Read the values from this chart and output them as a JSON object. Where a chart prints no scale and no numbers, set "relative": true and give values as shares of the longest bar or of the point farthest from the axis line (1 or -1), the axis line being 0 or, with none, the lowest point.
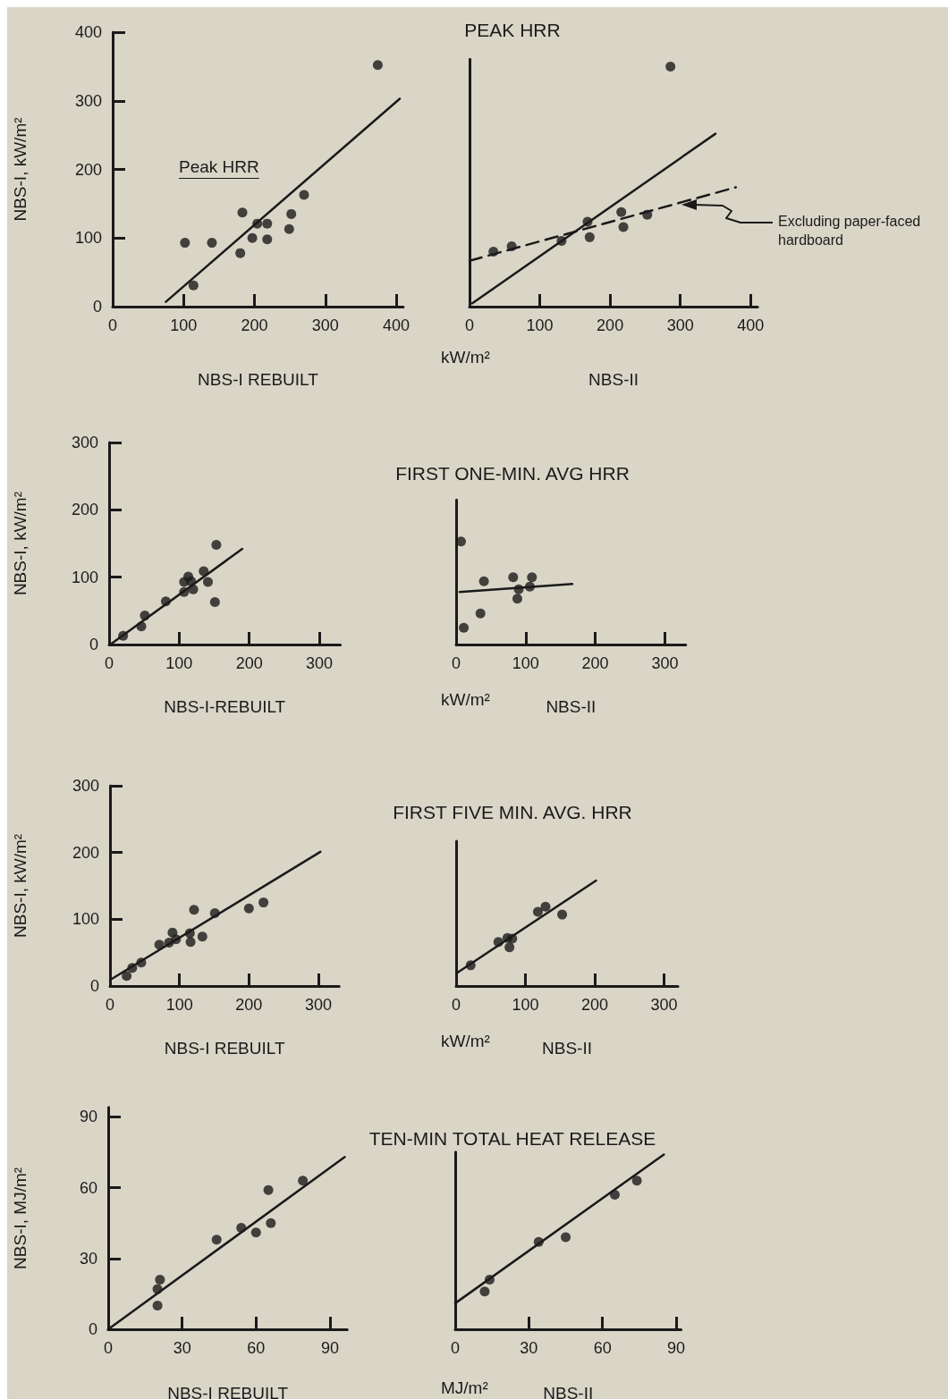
{
  "chart_data": [
    {
      "type": "scatter",
      "xlabel": "NBS-I REBUILT",
      "ylabel": "NBS-I, kW/m²",
      "annotations": [
        "Peak HRR"
      ],
      "xlim": [
        0,
        410
      ],
      "ylim": [
        0,
        400
      ],
      "xticks": [
        0,
        100,
        200,
        300,
        400
      ],
      "yticks": [
        0,
        100,
        200,
        300,
        400
      ],
      "marker": "circle",
      "series": [
        {
          "type": "scatter",
          "color": "#1a1a1a",
          "x": [
            102,
            114,
            140,
            180,
            183,
            197,
            204,
            218,
            218,
            249,
            252,
            270,
            374
          ],
          "values": [
            93,
            31,
            93,
            78,
            137,
            100,
            121,
            121,
            98,
            113,
            135,
            163,
            352
          ]
        },
        {
          "type": "line",
          "color": "#1a1a1a",
          "marker": "none",
          "line_style": "solid",
          "x": [
            75,
            405
          ],
          "values": [
            7,
            303
          ]
        }
      ]
    },
    {
      "type": "scatter",
      "title": "PEAK HRR",
      "xlabel": "NBS-II",
      "annotations": [
        "kW/m²",
        "Excluding paper-faced hardboard"
      ],
      "xlim": [
        0,
        410
      ],
      "xticks": [
        0,
        100,
        200,
        300,
        400
      ],
      "relative": true,
      "tick_labels": "x",
      "marker": "circle",
      "series": [
        {
          "type": "scatter",
          "color": "#1a1a1a",
          "x": [
            34,
            60,
            131,
            168,
            171,
            216,
            219,
            253,
            286
          ],
          "values": [
            0.229,
            0.251,
            0.274,
            0.354,
            0.289,
            0.394,
            0.331,
            0.383,
            1
          ]
        },
        {
          "type": "line",
          "color": "#1a1a1a",
          "marker": "none",
          "line_style": "solid",
          "x": [
            4,
            350
          ],
          "values": [
            0.014,
            0.72
          ]
        },
        {
          "type": "line",
          "color": "#1a1a1a",
          "marker": "none",
          "line_style": "dashed",
          "x": [
            0,
            379
          ],
          "values": [
            0.191,
            0.497
          ]
        }
      ]
    },
    {
      "type": "scatter",
      "xlabel": "NBS-I-REBUILT",
      "ylabel": "NBS-I, kW/m²",
      "xlim": [
        0,
        330
      ],
      "ylim": [
        0,
        300
      ],
      "xticks": [
        0,
        100,
        200,
        300
      ],
      "yticks": [
        0,
        100,
        200,
        300
      ],
      "marker": "circle",
      "series": [
        {
          "type": "scatter",
          "color": "#1a1a1a",
          "x": [
            20,
            46,
            51,
            81,
            107,
            107,
            113,
            117,
            120,
            135,
            141,
            151,
            153
          ],
          "values": [
            13,
            27,
            43,
            64,
            93,
            78,
            101,
            94,
            82,
            109,
            93,
            63,
            148
          ]
        },
        {
          "type": "line",
          "color": "#1a1a1a",
          "marker": "none",
          "line_style": "solid",
          "x": [
            3,
            190
          ],
          "values": [
            1,
            142
          ]
        }
      ]
    },
    {
      "type": "scatter",
      "title": "FIRST ONE-MIN. AVG HRR",
      "xlabel": "NBS-II",
      "annotations": [
        "kW/m²"
      ],
      "xlim": [
        0,
        330
      ],
      "xticks": [
        0,
        100,
        200,
        300
      ],
      "relative": true,
      "tick_labels": "x",
      "marker": "circle",
      "series": [
        {
          "type": "scatter",
          "color": "#1a1a1a",
          "x": [
            7,
            11,
            40,
            35,
            82,
            90,
            88,
            109,
            106
          ],
          "values": [
            1,
            0.163,
            0.614,
            0.301,
            0.654,
            0.536,
            0.444,
            0.654,
            0.562
          ]
        },
        {
          "type": "line",
          "color": "#1a1a1a",
          "marker": "none",
          "line_style": "solid",
          "x": [
            5,
            167
          ],
          "values": [
            0.51,
            0.588
          ]
        }
      ]
    },
    {
      "type": "scatter",
      "xlabel": "NBS-I REBUILT",
      "ylabel": "NBS-I, kW/m²",
      "xlim": [
        0,
        330
      ],
      "ylim": [
        0,
        300
      ],
      "xticks": [
        0,
        100,
        200,
        300
      ],
      "yticks": [
        0,
        100,
        200,
        300
      ],
      "marker": "circle",
      "series": [
        {
          "type": "scatter",
          "color": "#1a1a1a",
          "x": [
            24,
            32,
            45,
            71,
            85,
            90,
            95,
            115,
            116,
            121,
            133,
            151,
            200,
            221
          ],
          "values": [
            15,
            27,
            35,
            62,
            65,
            80,
            70,
            79,
            66,
            114,
            74,
            109,
            116,
            125
          ]
        },
        {
          "type": "line",
          "color": "#1a1a1a",
          "marker": "none",
          "line_style": "solid",
          "x": [
            0,
            303
          ],
          "values": [
            9,
            201
          ]
        }
      ]
    },
    {
      "type": "scatter",
      "title": "FIRST FIVE MIN. AVG. HRR",
      "xlabel": "NBS-II",
      "annotations": [
        "kW/m²"
      ],
      "xlim": [
        0,
        320
      ],
      "xticks": [
        0,
        100,
        200,
        300
      ],
      "relative": true,
      "tick_labels": "x",
      "marker": "circle",
      "series": [
        {
          "type": "scatter",
          "color": "#1a1a1a",
          "x": [
            21,
            61,
            74,
            81,
            77,
            118,
            129,
            153
          ],
          "values": [
            0.196,
            0.418,
            0.456,
            0.449,
            0.367,
            0.703,
            0.753,
            0.677
          ]
        },
        {
          "type": "line",
          "color": "#1a1a1a",
          "marker": "none",
          "line_style": "solid",
          "x": [
            2,
            202
          ],
          "values": [
            0.127,
            1
          ]
        }
      ]
    },
    {
      "type": "scatter",
      "xlabel": "NBS-I REBUILT",
      "ylabel": "NBS-I, MJ/m²",
      "xlim": [
        0,
        97
      ],
      "ylim": [
        0,
        94
      ],
      "xticks": [
        0,
        30,
        60,
        90
      ],
      "yticks": [
        0,
        30,
        60,
        90
      ],
      "marker": "circle",
      "series": [
        {
          "type": "scatter",
          "color": "#1a1a1a",
          "x": [
            20,
            20,
            21,
            44,
            54,
            60,
            65,
            66,
            79
          ],
          "values": [
            10,
            17,
            21,
            38,
            43,
            41,
            59,
            45,
            63
          ]
        },
        {
          "type": "line",
          "color": "#1a1a1a",
          "marker": "none",
          "line_style": "solid",
          "x": [
            0,
            96
          ],
          "values": [
            0,
            73
          ]
        }
      ]
    },
    {
      "type": "scatter",
      "title": "TEN-MIN TOTAL HEAT RELEASE",
      "xlabel": "NBS-II",
      "annotations": [
        "MJ/m²"
      ],
      "xlim": [
        0,
        92
      ],
      "xticks": [
        0,
        30,
        60,
        90
      ],
      "relative": true,
      "tick_labels": "x",
      "marker": "circle",
      "series": [
        {
          "type": "scatter",
          "color": "#1a1a1a",
          "x": [
            12,
            14,
            34,
            45,
            65,
            74
          ],
          "values": [
            0.216,
            0.284,
            0.5,
            0.527,
            0.77,
            0.851
          ]
        },
        {
          "type": "line",
          "color": "#1a1a1a",
          "marker": "none",
          "line_style": "solid",
          "x": [
            0,
            85
          ],
          "values": [
            0.149,
            1
          ]
        }
      ]
    }
  ]
}
